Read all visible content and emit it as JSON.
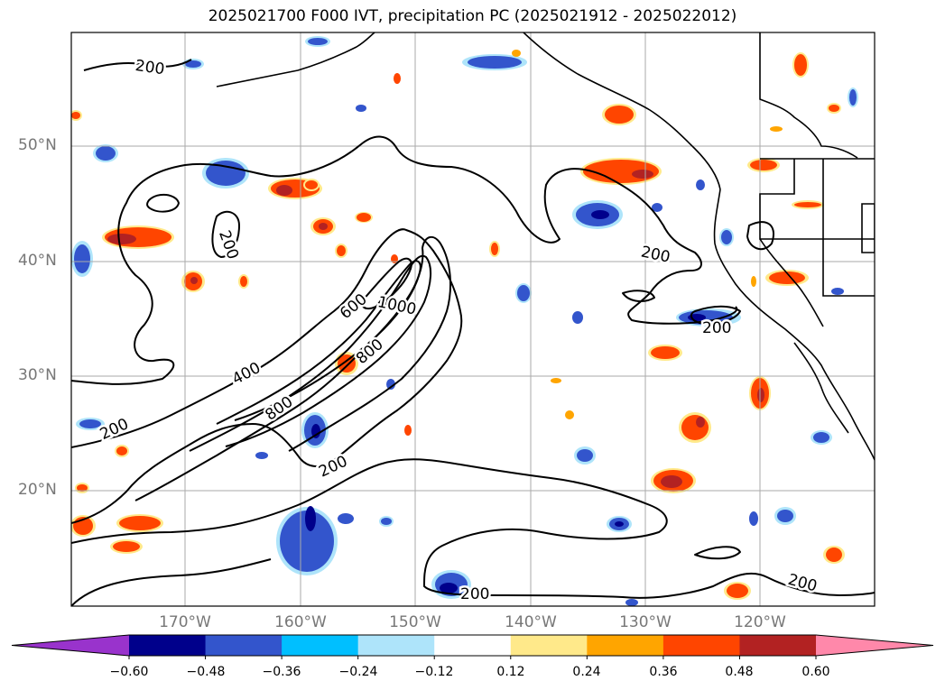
{
  "title": "2025021700 F000 IVT, precipitation PC (2025021912 - 2025022012)",
  "lat_labels": [
    "50°N",
    "40°N",
    "30°N",
    "20°N"
  ],
  "lon_labels": [
    "170°W",
    "160°W",
    "150°W",
    "140°W",
    "130°W",
    "120°W"
  ],
  "ivt_contour_labels": [
    "200",
    "200",
    "200",
    "200",
    "200",
    "200",
    "200",
    "200",
    "400",
    "600",
    "800",
    "800",
    "1000"
  ],
  "colorbar": {
    "colors": [
      "#9933cc",
      "#00008b",
      "#3355cc",
      "#00bfff",
      "#aee4fa",
      "#ffffff",
      "#ffe98a",
      "#ffa500",
      "#ff4500",
      "#b22222",
      "#ff88aa"
    ],
    "tick_labels": [
      "−0.60",
      "−0.48",
      "−0.36",
      "−0.24",
      "−0.12",
      "0.12",
      "0.24",
      "0.36",
      "0.48",
      "0.60"
    ]
  },
  "colors": {
    "contour": "#000000",
    "grid": "#aaaaaa",
    "coastline": "#000000",
    "axis_label": "#777777"
  }
}
